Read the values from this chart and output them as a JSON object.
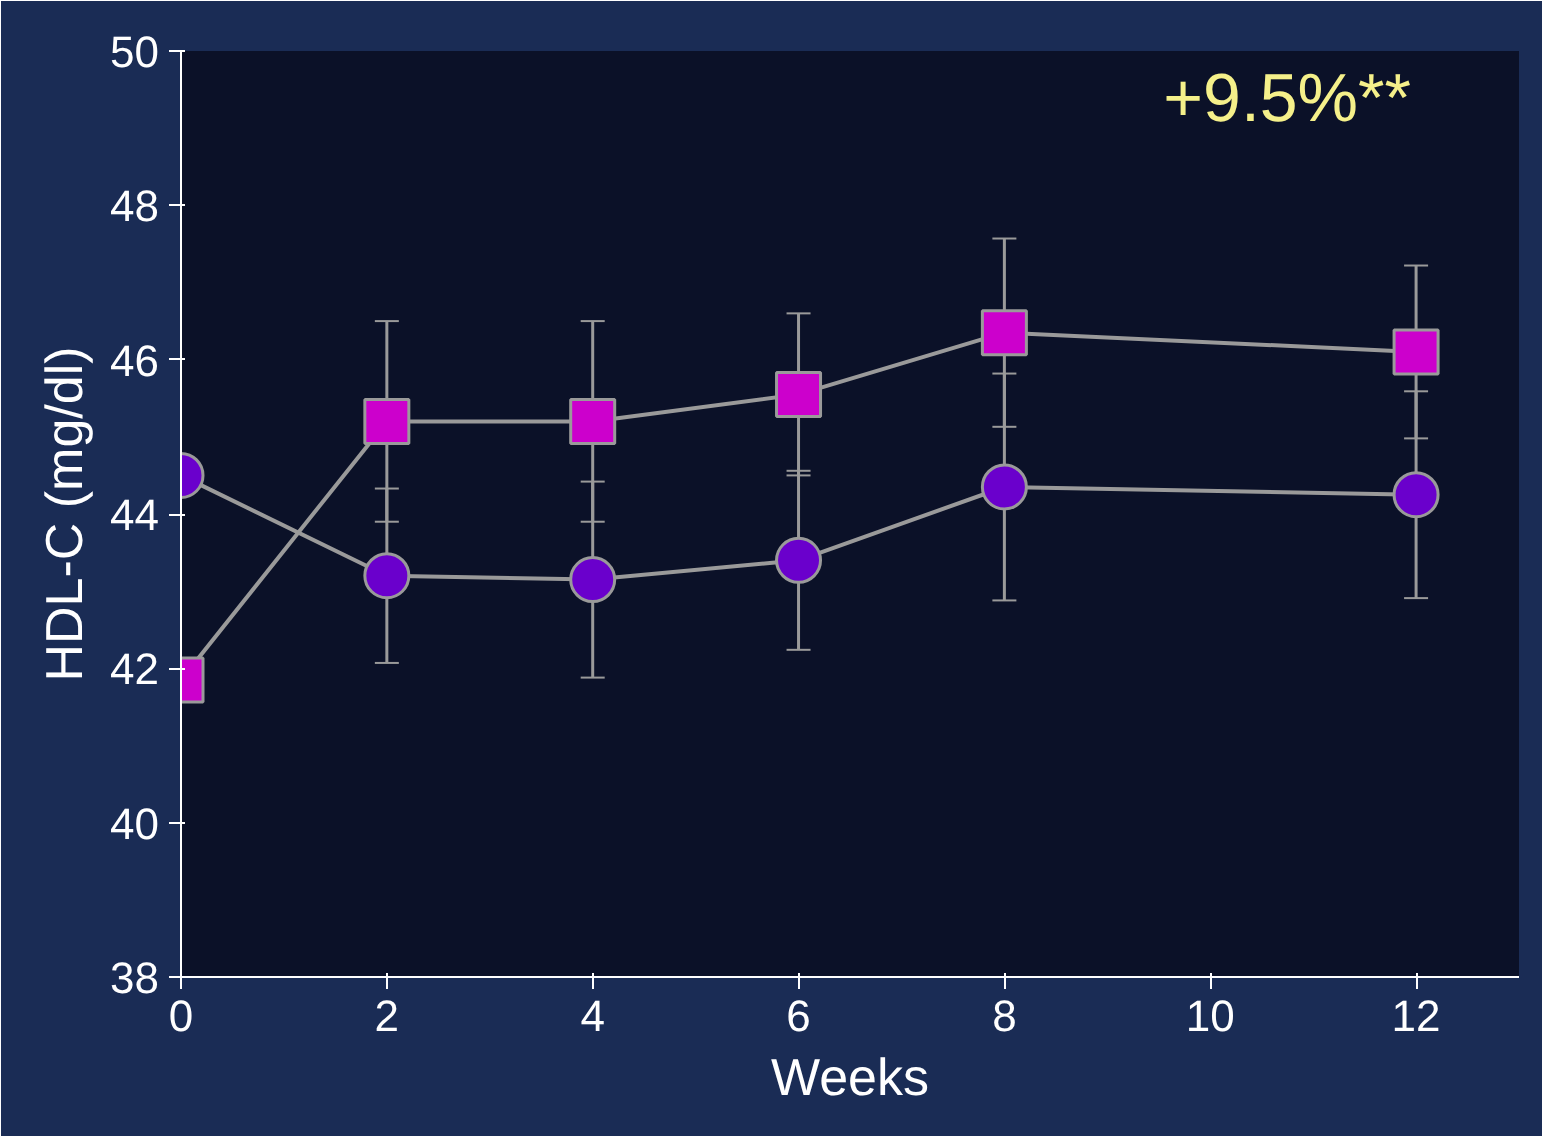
{
  "chart_data": {
    "type": "line",
    "xlabel": "Weeks",
    "ylabel": "HDL-C (mg/dl)",
    "x": [
      0,
      2,
      4,
      6,
      8,
      12
    ],
    "series": [
      {
        "color": "#cc00cc",
        "marker": "square",
        "values": [
          41.85,
          45.2,
          45.2,
          45.55,
          46.35,
          46.1
        ],
        "errors": [
          null,
          1.3,
          1.3,
          1.05,
          1.22,
          1.12
        ]
      },
      {
        "color": "#6a00cc",
        "marker": "circle",
        "values": [
          44.5,
          43.2,
          43.15,
          43.4,
          44.35,
          44.25
        ],
        "errors": [
          null,
          1.13,
          1.27,
          1.16,
          1.47,
          1.34
        ]
      }
    ],
    "xlim": [
      0,
      13
    ],
    "ylim": [
      38,
      50
    ],
    "xticks": [
      0,
      2,
      4,
      6,
      8,
      10,
      12
    ],
    "yticks": [
      38,
      40,
      42,
      44,
      46,
      48,
      50
    ],
    "annotations": [
      "+9.5%**"
    ],
    "grid": false
  }
}
